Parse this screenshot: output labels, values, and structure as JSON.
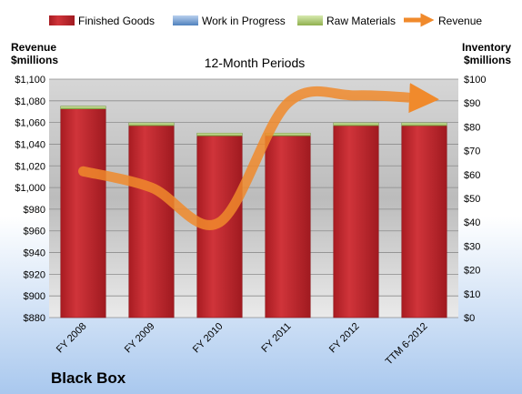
{
  "company": "Black Box",
  "chart_data": {
    "type": "bar",
    "title": "12-Month Periods",
    "categories": [
      "FY 2008",
      "FY 2009",
      "FY 2010",
      "FY 2011",
      "FY 2012",
      "TTM 6-2012"
    ],
    "left_axis": {
      "label_line1": "Revenue",
      "label_line2": "$millions",
      "range": [
        880,
        1100
      ],
      "step": 20,
      "prefix": "$"
    },
    "right_axis": {
      "label_line1": "Inventory",
      "label_line2": "$millions",
      "range": [
        0,
        100
      ],
      "step": 10,
      "prefix": "$"
    },
    "grid": true,
    "legend_position": "top",
    "series": [
      {
        "name": "Finished Goods",
        "axis": "right",
        "color": "#c0282d",
        "values": [
          87.5,
          80.5,
          76.2,
          76.2,
          80.5,
          80.5
        ]
      },
      {
        "name": "Work in Progress",
        "axis": "right",
        "color": "#4f81bd",
        "values": [
          0,
          0,
          0,
          0,
          0,
          0
        ]
      },
      {
        "name": "Raw Materials",
        "axis": "right",
        "color": "#9bbb59",
        "values": [
          1.2,
          1.2,
          1.2,
          1.2,
          1.2,
          1.2
        ]
      },
      {
        "name": "Revenue",
        "axis": "left",
        "type": "line",
        "color": "#f08a2c",
        "values": [
          1015,
          1000,
          968,
          1078,
          1085,
          1082
        ]
      }
    ]
  }
}
